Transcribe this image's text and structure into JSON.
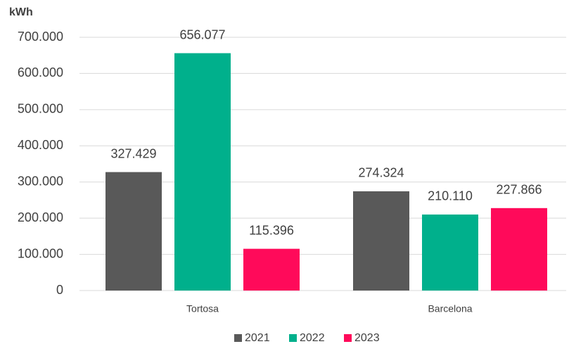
{
  "chart_data": {
    "type": "bar",
    "y_label": "kWh",
    "categories": [
      "Tortosa",
      "Barcelona"
    ],
    "series": [
      {
        "name": "2021",
        "color": "#595959",
        "values": [
          327429,
          274324
        ],
        "value_labels": [
          "327.429",
          "274.324"
        ]
      },
      {
        "name": "2022",
        "color": "#00b08c",
        "values": [
          656077,
          210110
        ],
        "value_labels": [
          "656.077",
          "210.110"
        ]
      },
      {
        "name": "2023",
        "color": "#ff0a5a",
        "values": [
          115396,
          227866
        ],
        "value_labels": [
          "115.396",
          "227.866"
        ]
      }
    ],
    "ylim": [
      0,
      700000
    ],
    "yticks": [
      0,
      {
        "value": 100000,
        "label": "100.000"
      },
      {
        "value": 200000,
        "label": "200.000"
      },
      {
        "value": 300000,
        "label": "300.000"
      },
      {
        "value": 400000,
        "label": "400.000"
      },
      {
        "value": 500000,
        "label": "500.000"
      },
      {
        "value": 600000,
        "label": "600.000"
      },
      {
        "value": 700000,
        "label": "700.000"
      }
    ],
    "grid": true,
    "legend": "bottom"
  }
}
